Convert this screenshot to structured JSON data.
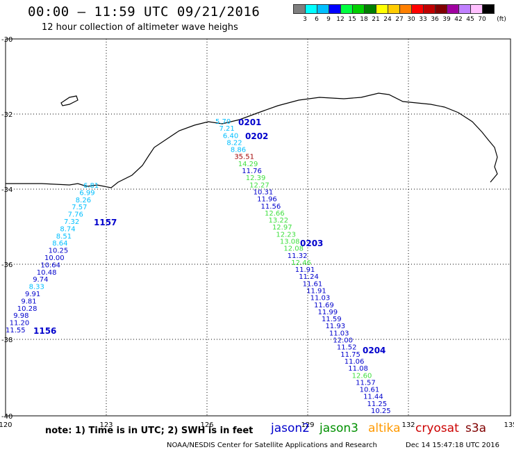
{
  "header": {
    "title": "00:00 – 11:59 UTC 09/21/2016",
    "subtitle": "12 hour collection of altimeter wave heighs"
  },
  "colorbar": {
    "unit": "(ft)",
    "labels": [
      "3",
      "6",
      "9",
      "12",
      "15",
      "18",
      "21",
      "24",
      "27",
      "30",
      "33",
      "36",
      "39",
      "42",
      "45",
      "70"
    ],
    "colors": [
      "#7f7f7f",
      "#00ffff",
      "#00bfff",
      "#0000ff",
      "#00ff40",
      "#00d000",
      "#008000",
      "#ffff00",
      "#ffcc00",
      "#ff8000",
      "#ff0000",
      "#c00000",
      "#800000",
      "#a000a0",
      "#c080ff",
      "#ffc0ff",
      "#000000"
    ]
  },
  "axes": {
    "x_ticks": [
      "120",
      "123",
      "126",
      "129",
      "132",
      "135"
    ],
    "y_ticks": [
      "-30",
      "-32",
      "-34",
      "-36",
      "-38",
      "-40"
    ]
  },
  "tracks": {
    "left_labels": [
      {
        "text": "1157",
        "sat": "jason2"
      },
      {
        "text": "1156",
        "sat": "jason2"
      }
    ],
    "left_values": [
      {
        "v": "6.81",
        "c": "#00bfff"
      },
      {
        "v": "6.99",
        "c": "#00bfff"
      },
      {
        "v": "8.26",
        "c": "#00bfff"
      },
      {
        "v": "7.57",
        "c": "#00bfff"
      },
      {
        "v": "7.76",
        "c": "#00bfff"
      },
      {
        "v": "7.32",
        "c": "#00bfff"
      },
      {
        "v": "8.74",
        "c": "#00bfff"
      },
      {
        "v": "8.51",
        "c": "#00bfff"
      },
      {
        "v": "8.64",
        "c": "#00bfff"
      },
      {
        "v": "10.25",
        "c": "#0000cc"
      },
      {
        "v": "10.00",
        "c": "#0000cc"
      },
      {
        "v": "10.64",
        "c": "#0000cc"
      },
      {
        "v": "10.48",
        "c": "#0000cc"
      },
      {
        "v": "9.74",
        "c": "#0000cc"
      },
      {
        "v": "8.33",
        "c": "#00bfff"
      },
      {
        "v": "9.91",
        "c": "#0000cc"
      },
      {
        "v": "9.81",
        "c": "#0000cc"
      },
      {
        "v": "10.28",
        "c": "#0000cc"
      },
      {
        "v": "9.98",
        "c": "#0000cc"
      },
      {
        "v": "11.20",
        "c": "#0000cc"
      },
      {
        "v": "11.55",
        "c": "#0000cc"
      }
    ],
    "right_labels": [
      {
        "text": "0201",
        "sat": "jason2"
      },
      {
        "text": "0202",
        "sat": "jason2"
      },
      {
        "text": "0203",
        "sat": "jason2"
      },
      {
        "text": "0204",
        "sat": "jason2"
      }
    ],
    "right_values": [
      {
        "v": "5.70",
        "c": "#00bfff"
      },
      {
        "v": "7.21",
        "c": "#00bfff"
      },
      {
        "v": "6.40",
        "c": "#00bfff"
      },
      {
        "v": "8.22",
        "c": "#00bfff"
      },
      {
        "v": "8.86",
        "c": "#00bfff"
      },
      {
        "v": "35.51",
        "c": "#a00000"
      },
      {
        "v": "14.29",
        "c": "#40e040"
      },
      {
        "v": "11.76",
        "c": "#0000cc"
      },
      {
        "v": "12.39",
        "c": "#40e040"
      },
      {
        "v": "12.27",
        "c": "#40e040"
      },
      {
        "v": "10.31",
        "c": "#0000cc"
      },
      {
        "v": "11.96",
        "c": "#0000cc"
      },
      {
        "v": "11.56",
        "c": "#0000cc"
      },
      {
        "v": "12.66",
        "c": "#40e040"
      },
      {
        "v": "13.22",
        "c": "#40e040"
      },
      {
        "v": "12.97",
        "c": "#40e040"
      },
      {
        "v": "12.23",
        "c": "#40e040"
      },
      {
        "v": "13.08",
        "c": "#40e040"
      },
      {
        "v": "12.08",
        "c": "#40e040"
      },
      {
        "v": "11.32",
        "c": "#0000cc"
      },
      {
        "v": "12.46",
        "c": "#40e040"
      },
      {
        "v": "11.91",
        "c": "#0000cc"
      },
      {
        "v": "11.24",
        "c": "#0000cc"
      },
      {
        "v": "11.61",
        "c": "#0000cc"
      },
      {
        "v": "11.91",
        "c": "#0000cc"
      },
      {
        "v": "11.03",
        "c": "#0000cc"
      },
      {
        "v": "11.69",
        "c": "#0000cc"
      },
      {
        "v": "11.99",
        "c": "#0000cc"
      },
      {
        "v": "11.59",
        "c": "#0000cc"
      },
      {
        "v": "11.93",
        "c": "#0000cc"
      },
      {
        "v": "11.03",
        "c": "#0000cc"
      },
      {
        "v": "12.00",
        "c": "#0000cc"
      },
      {
        "v": "11.52",
        "c": "#0000cc"
      },
      {
        "v": "11.75",
        "c": "#0000cc"
      },
      {
        "v": "11.06",
        "c": "#0000cc"
      },
      {
        "v": "11.08",
        "c": "#0000cc"
      },
      {
        "v": "12.60",
        "c": "#40e040"
      },
      {
        "v": "11.57",
        "c": "#0000cc"
      },
      {
        "v": "10.61",
        "c": "#0000cc"
      },
      {
        "v": "11.44",
        "c": "#0000cc"
      },
      {
        "v": "11.25",
        "c": "#0000cc"
      },
      {
        "v": "10.25",
        "c": "#0000cc"
      }
    ]
  },
  "footer": {
    "note": "note: 1) Time is in UTC; 2) SWH is in feet",
    "satellites": [
      {
        "name": "jason2",
        "color": "#0000cc"
      },
      {
        "name": "jason3",
        "color": "#009000"
      },
      {
        "name": "altika",
        "color": "#ff9900"
      },
      {
        "name": "cryosat",
        "color": "#cc0000"
      },
      {
        "name": "s3a",
        "color": "#800000"
      }
    ],
    "credit": "NOAA/NESDIS Center for Satellite Applications and Research",
    "timestamp": "Dec 14 15:47:18 UTC 2016"
  }
}
